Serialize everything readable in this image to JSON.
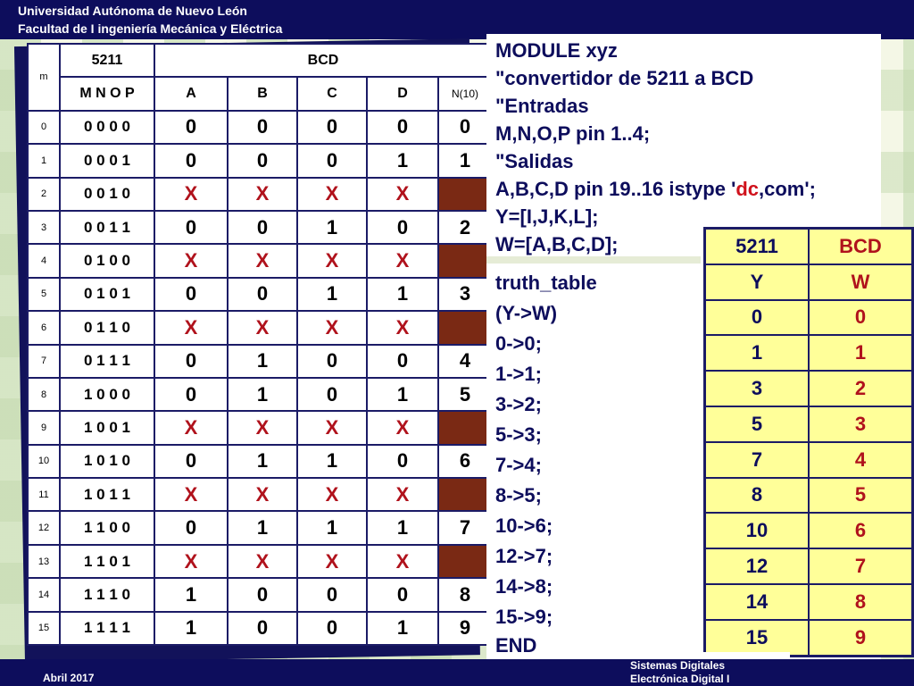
{
  "header": {
    "line1": "Universidad Autónoma de Nuevo León",
    "line2": "Facultad de I ingeniería Mecánica y Eléctrica"
  },
  "truth_table": {
    "col_m": "m",
    "group_5211": "5211",
    "group_bcd": "BCD",
    "sub_mnop": "M N O P",
    "sub_a": "A",
    "sub_b": "B",
    "sub_c": "C",
    "sub_d": "D",
    "sub_n10": "N(10)",
    "rows": [
      {
        "m": "0",
        "mnop": "0 0 0 0",
        "a": "0",
        "b": "0",
        "c": "0",
        "d": "0",
        "n": "0",
        "dc": false
      },
      {
        "m": "1",
        "mnop": "0 0 0 1",
        "a": "0",
        "b": "0",
        "c": "0",
        "d": "1",
        "n": "1",
        "dc": false
      },
      {
        "m": "2",
        "mnop": "0 0 1 0",
        "a": "X",
        "b": "X",
        "c": "X",
        "d": "X",
        "n": "",
        "dc": true
      },
      {
        "m": "3",
        "mnop": "0 0 1 1",
        "a": "0",
        "b": "0",
        "c": "1",
        "d": "0",
        "n": "2",
        "dc": false
      },
      {
        "m": "4",
        "mnop": "0 1 0 0",
        "a": "X",
        "b": "X",
        "c": "X",
        "d": "X",
        "n": "",
        "dc": true
      },
      {
        "m": "5",
        "mnop": "0 1 0 1",
        "a": "0",
        "b": "0",
        "c": "1",
        "d": "1",
        "n": "3",
        "dc": false
      },
      {
        "m": "6",
        "mnop": "0 1 1 0",
        "a": "X",
        "b": "X",
        "c": "X",
        "d": "X",
        "n": "",
        "dc": true
      },
      {
        "m": "7",
        "mnop": "0 1 1 1",
        "a": "0",
        "b": "1",
        "c": "0",
        "d": "0",
        "n": "4",
        "dc": false
      },
      {
        "m": "8",
        "mnop": "1 0 0 0",
        "a": "0",
        "b": "1",
        "c": "0",
        "d": "1",
        "n": "5",
        "dc": false
      },
      {
        "m": "9",
        "mnop": "1 0 0 1",
        "a": "X",
        "b": "X",
        "c": "X",
        "d": "X",
        "n": "",
        "dc": true
      },
      {
        "m": "10",
        "mnop": "1 0 1 0",
        "a": "0",
        "b": "1",
        "c": "1",
        "d": "0",
        "n": "6",
        "dc": false
      },
      {
        "m": "11",
        "mnop": "1 0 1 1",
        "a": "X",
        "b": "X",
        "c": "X",
        "d": "X",
        "n": "",
        "dc": true
      },
      {
        "m": "12",
        "mnop": "1 1 0 0",
        "a": "0",
        "b": "1",
        "c": "1",
        "d": "1",
        "n": "7",
        "dc": false
      },
      {
        "m": "13",
        "mnop": "1 1 0 1",
        "a": "X",
        "b": "X",
        "c": "X",
        "d": "X",
        "n": "",
        "dc": true
      },
      {
        "m": "14",
        "mnop": "1 1 1 0",
        "a": "1",
        "b": "0",
        "c": "0",
        "d": "0",
        "n": "8",
        "dc": false
      },
      {
        "m": "15",
        "mnop": "1 1 1 1",
        "a": "1",
        "b": "0",
        "c": "0",
        "d": "1",
        "n": "9",
        "dc": false
      }
    ]
  },
  "code": {
    "line1": "MODULE xyz",
    "line2": "\"convertidor de 5211 a BCD",
    "line3": "\"Entradas",
    "line4": "M,N,O,P pin 1..4;",
    "line5": "\"Salidas",
    "line6_pre": "A,B,C,D pin 19..16 istype '",
    "line6_red": "dc",
    "line6_post": ",com';",
    "line7": " Y=[I,J,K,L];",
    "line8": " W=[A,B,C,D];",
    "line9": "truth_table",
    "line10": "(Y->W)",
    "mappings": [
      "0->0;",
      "1->1;",
      "3->2;",
      "5->3;",
      "7->4;",
      "8->5;",
      "10->6;",
      "12->7;",
      "14->8;",
      "15->9;"
    ],
    "end": "END"
  },
  "mapping_table": {
    "h_5211": "5211",
    "h_bcd": "BCD",
    "h_y": "Y",
    "h_w": "W",
    "rows": [
      [
        "0",
        "0"
      ],
      [
        "1",
        "1"
      ],
      [
        "3",
        "2"
      ],
      [
        "5",
        "3"
      ],
      [
        "7",
        "4"
      ],
      [
        "8",
        "5"
      ],
      [
        "10",
        "6"
      ],
      [
        "12",
        "7"
      ],
      [
        "14",
        "8"
      ],
      [
        "15",
        "9"
      ]
    ]
  },
  "footer": {
    "date": "Abril 2017",
    "course1": "Sistemas Digitales",
    "course2": "Electrónica Digital I"
  }
}
